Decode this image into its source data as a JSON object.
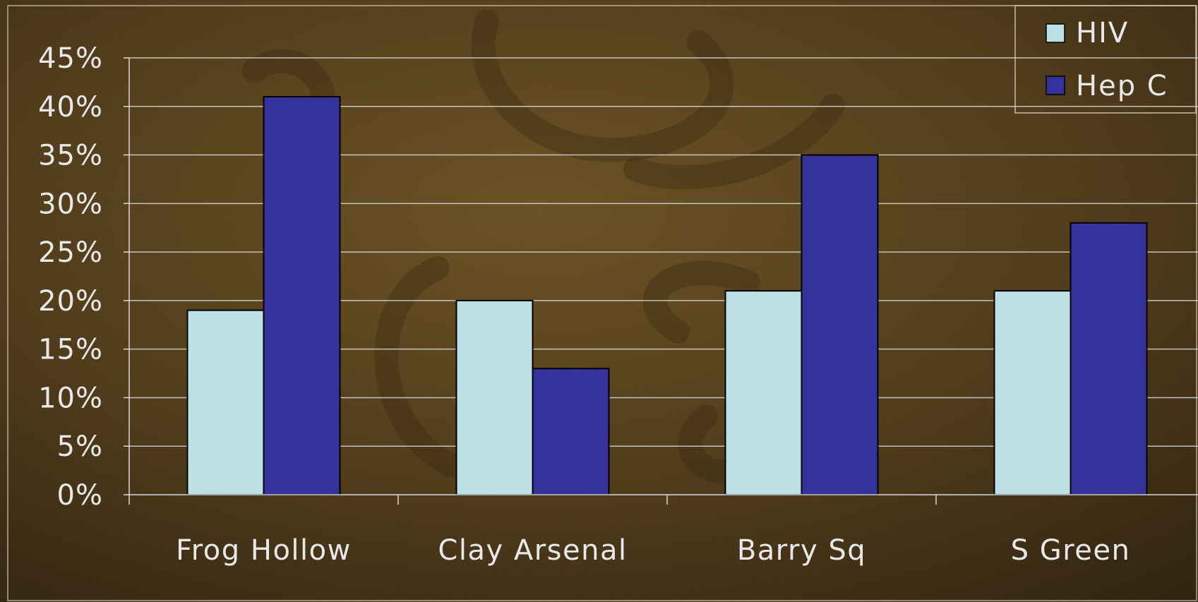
{
  "chart_data": {
    "type": "bar",
    "title": "",
    "xlabel": "",
    "ylabel": "",
    "categories": [
      "Frog Hollow",
      "Clay Arsenal",
      "Barry Sq",
      "S Green"
    ],
    "series": [
      {
        "name": "HIV",
        "values": [
          19,
          20,
          21,
          21
        ],
        "color": "#bce0e4"
      },
      {
        "name": "Hep C",
        "values": [
          41,
          13,
          35,
          28
        ],
        "color": "#35329b"
      }
    ],
    "ylim": [
      0,
      45
    ],
    "y_ticks": [
      0,
      5,
      10,
      15,
      20,
      25,
      30,
      35,
      40,
      45
    ],
    "y_tick_format": "percent",
    "grid": true,
    "legend": "top-right"
  },
  "colors": {
    "background": "#3d2b13",
    "text": "#e8e8e8",
    "grid": "#d9d9d9",
    "bar_outline": "#000000"
  }
}
